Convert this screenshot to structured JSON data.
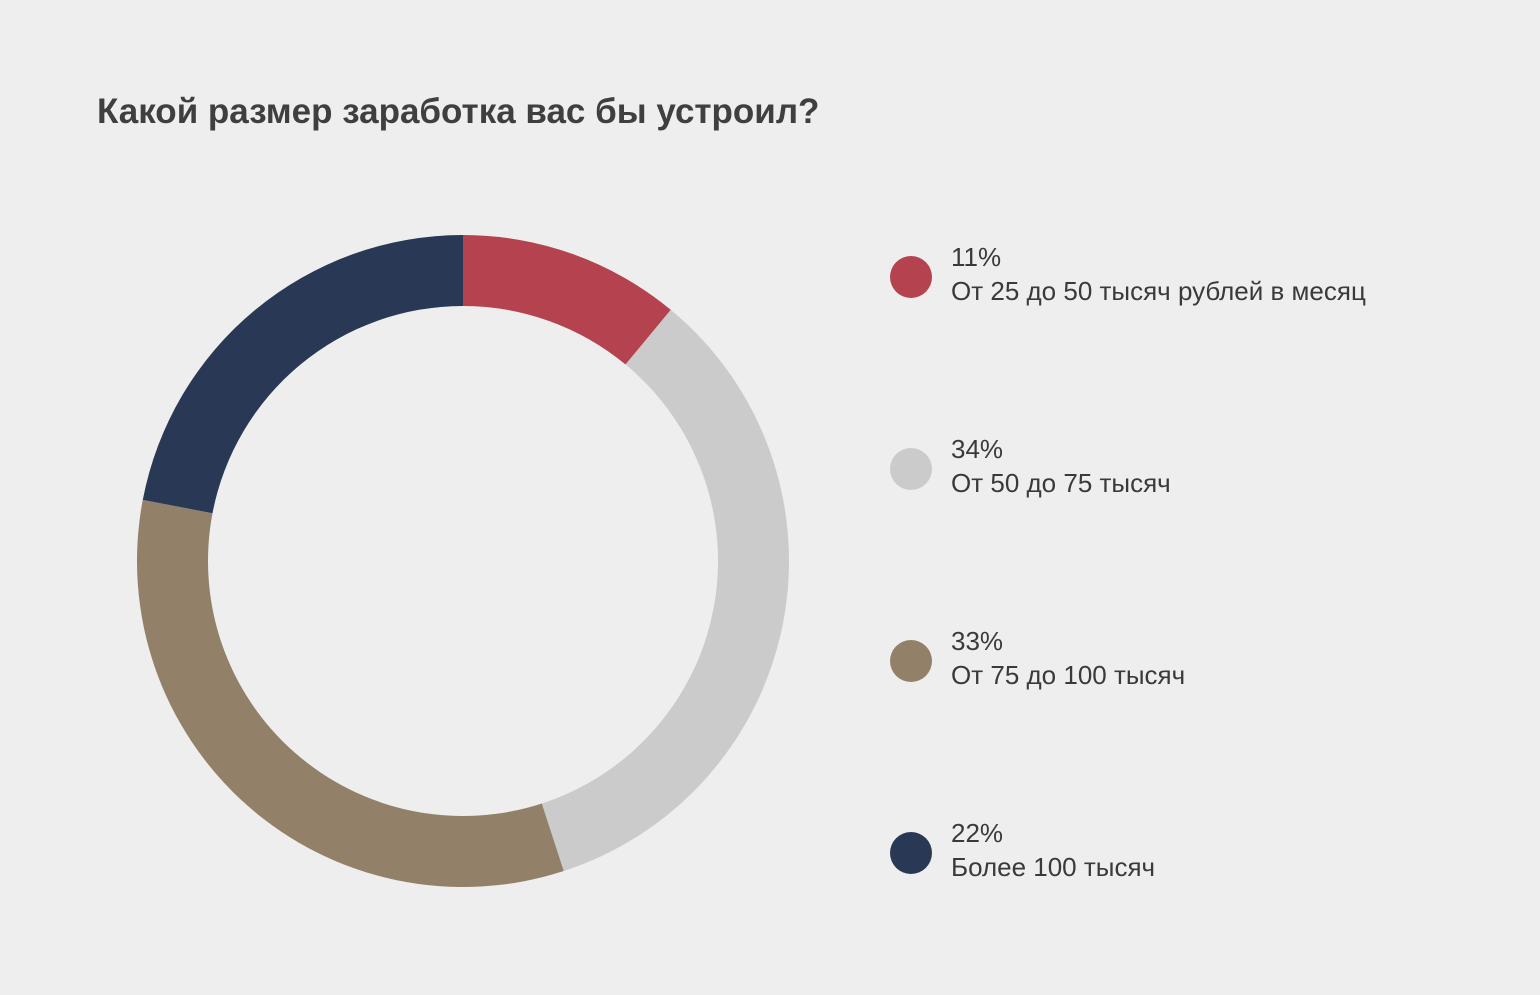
{
  "chart_data": {
    "type": "pie",
    "variant": "donut",
    "title": "Какой размер заработка вас бы устроил?",
    "unit": "%",
    "slices": [
      {
        "label": "От 25 до 50 тысяч рублей в месяц",
        "value": 11,
        "value_label": "11%",
        "color": "#b4434f"
      },
      {
        "label": "От 50 до 75 тысяч",
        "value": 34,
        "value_label": "34%",
        "color": "#cbcbcb"
      },
      {
        "label": "От 75 до 100 тысяч",
        "value": 33,
        "value_label": "33%",
        "color": "#928168"
      },
      {
        "label": "Более 100 тысяч",
        "value": 22,
        "value_label": "22%",
        "color": "#293955"
      }
    ],
    "start_angle": "top",
    "direction": "clockwise",
    "legend_position": "right"
  }
}
